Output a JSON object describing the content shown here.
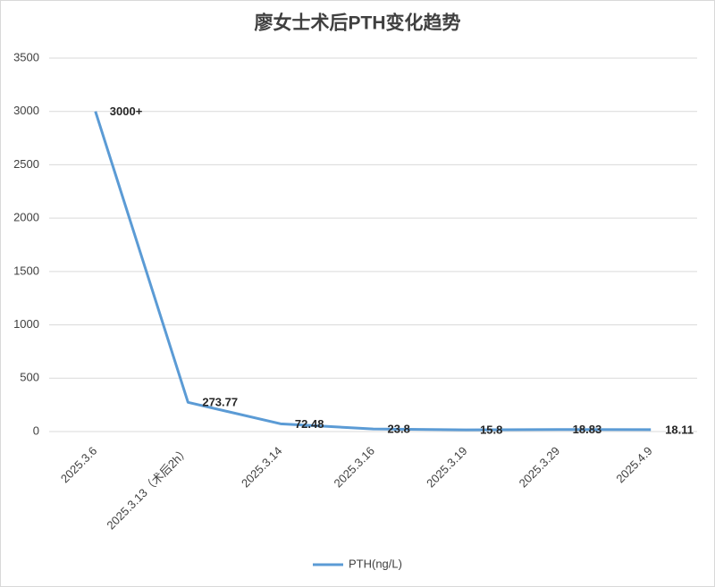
{
  "chart_data": {
    "type": "line",
    "title": "廖女士术后PTH变化趋势",
    "categories": [
      "2025.3.6",
      "2025.3.13（术后2h）",
      "2025.3.14",
      "2025.3.16",
      "2025.3.19",
      "2025.3.29",
      "2025.4.9"
    ],
    "series": [
      {
        "name": "PTH(ng/L)",
        "color": "#5b9bd5",
        "values": [
          3000,
          273.77,
          72.48,
          23.8,
          15.8,
          18.83,
          18.11
        ],
        "value_labels": [
          "3000+",
          "273.77",
          "72.48",
          "23.8",
          "15.8",
          "18.83",
          "18.11"
        ]
      }
    ],
    "ylim": [
      0,
      3500
    ],
    "yticks": [
      0,
      500,
      1000,
      1500,
      2000,
      2500,
      3000,
      3500
    ],
    "grid": true,
    "legend": "bottom"
  }
}
